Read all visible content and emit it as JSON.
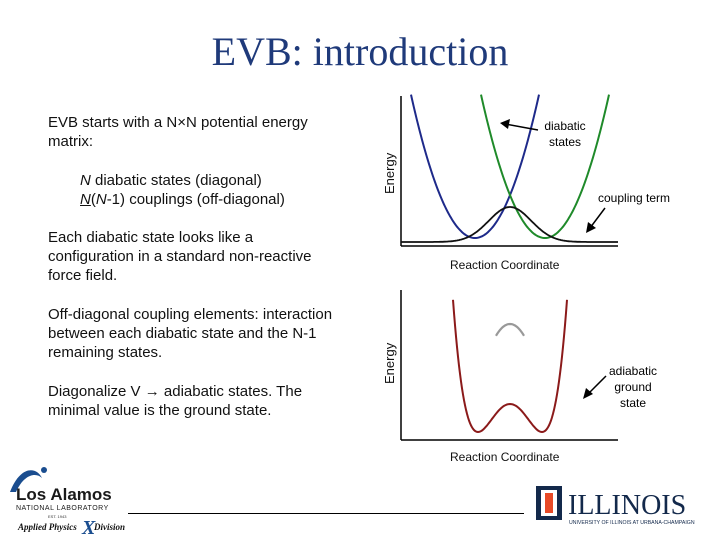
{
  "title": "EVB: introduction",
  "body": {
    "p1": "EVB starts with a N×N potential energy matrix:",
    "sub1_n": "N",
    "sub1_rest": " diabatic states (diagonal)",
    "sub2_n": "N",
    "sub2_paren": "(",
    "sub2_n2": "N",
    "sub2_rest": "-1) couplings (off-diagonal)",
    "p2": "Each diabatic state looks like a configuration in a standard non-reactive force field.",
    "p3": "Off-diagonal coupling elements: interaction between each diabatic state and the N-1 remaining states.",
    "p4": "Diagonalize V → adiabatic states. The minimal value is the ground state."
  },
  "figures": {
    "top": {
      "ylabel": "Energy",
      "xlabel": "Reaction Coordinate",
      "label_diabatic": "diabatic\nstates",
      "label_coupling": "coupling term",
      "colors": {
        "left": "#1e2a8a",
        "right": "#1f8a2a",
        "coupling": "#111111"
      }
    },
    "bottom": {
      "ylabel": "Energy",
      "xlabel": "Reaction Coordinate",
      "label_adiabatic": "adiabatic\nground\nstate",
      "colors": {
        "ground": "#8b1a1a",
        "excited": "#999999"
      }
    }
  },
  "logos": {
    "lanl_name": "Los Alamos",
    "lanl_sub": "NATIONAL LABORATORY",
    "lanl_est": "EST. 1943",
    "lanl_division_a": "Applied Physics",
    "lanl_division_x": "X",
    "lanl_division_b": "Division",
    "illinois_name": "ILLINOIS",
    "illinois_sub": "UNIVERSITY OF ILLINOIS AT URBANA-CHAMPAIGN"
  }
}
